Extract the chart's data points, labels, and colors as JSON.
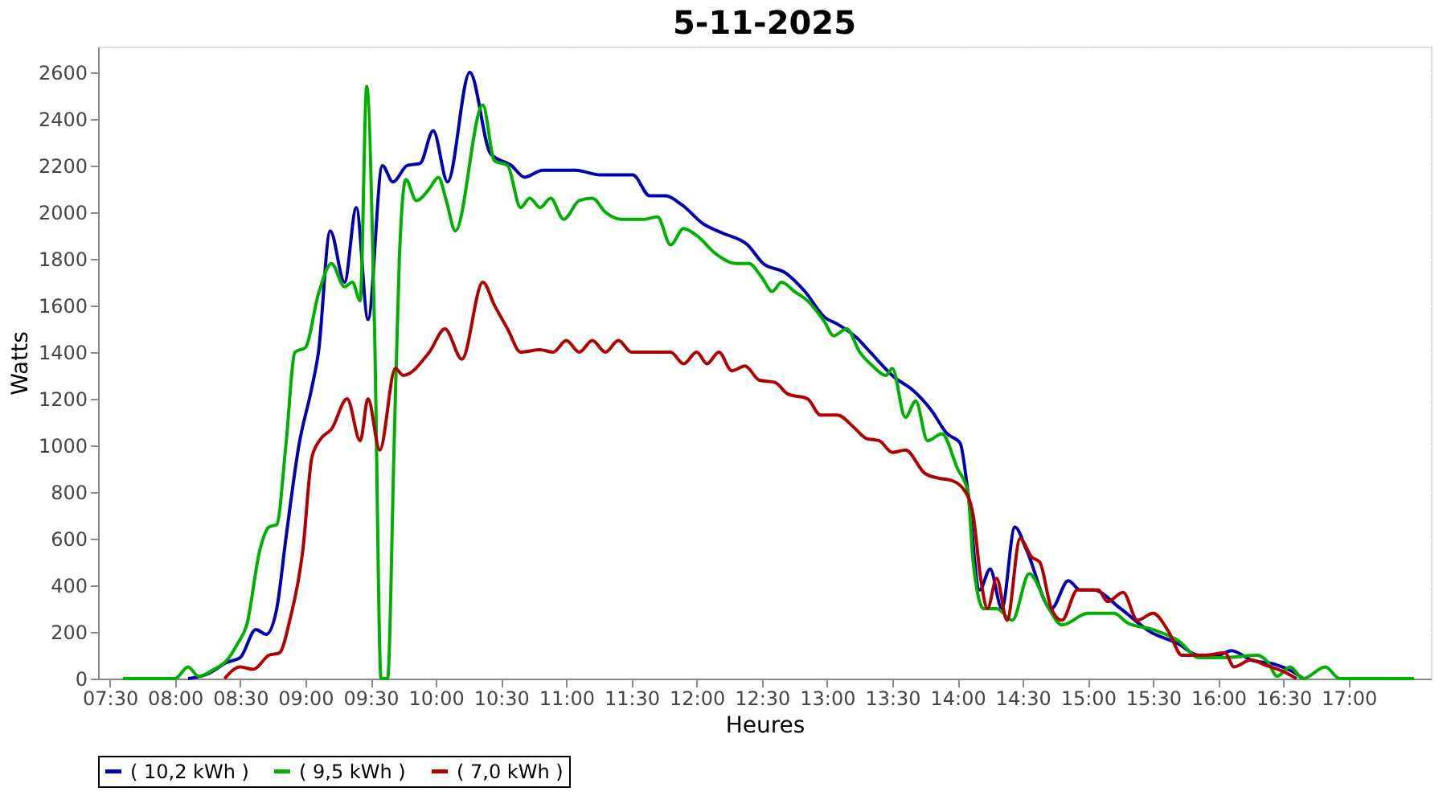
{
  "chart_data": {
    "type": "line",
    "title": "5-11-2025",
    "xlabel": "Heures",
    "ylabel": "Watts",
    "xlim": [
      7.41,
      17.63
    ],
    "ylim": [
      0,
      2710
    ],
    "xticks": [
      {
        "value": 7.5,
        "label": "07:30"
      },
      {
        "value": 8,
        "label": "08:00"
      },
      {
        "value": 8.5,
        "label": "08:30"
      },
      {
        "value": 9,
        "label": "09:00"
      },
      {
        "value": 9.5,
        "label": "09:30"
      },
      {
        "value": 10,
        "label": "10:00"
      },
      {
        "value": 10.5,
        "label": "10:30"
      },
      {
        "value": 11,
        "label": "11:00"
      },
      {
        "value": 11.5,
        "label": "11:30"
      },
      {
        "value": 12,
        "label": "12:00"
      },
      {
        "value": 12.5,
        "label": "12:30"
      },
      {
        "value": 13,
        "label": "13:00"
      },
      {
        "value": 13.5,
        "label": "13:30"
      },
      {
        "value": 14,
        "label": "14:00"
      },
      {
        "value": 14.5,
        "label": "14:30"
      },
      {
        "value": 15,
        "label": "15:00"
      },
      {
        "value": 15.5,
        "label": "15:30"
      },
      {
        "value": 16,
        "label": "16:00"
      },
      {
        "value": 16.5,
        "label": "16:30"
      },
      {
        "value": 17,
        "label": "17:00"
      }
    ],
    "yticks": [
      0,
      200,
      400,
      600,
      800,
      1000,
      1200,
      1400,
      1600,
      1800,
      2000,
      2200,
      2400,
      2600
    ],
    "grid": true,
    "legend": "bottom",
    "marker": "none",
    "line_style": "solid",
    "series": [
      {
        "name": "( 10,2 kWh )",
        "color": "#0000b0",
        "x": [
          8.1,
          8.25,
          8.4,
          8.5,
          8.62,
          8.7,
          8.78,
          8.85,
          8.95,
          9.05,
          9.1,
          9.19,
          9.3,
          9.39,
          9.48,
          9.59,
          9.67,
          9.78,
          9.88,
          9.98,
          10.09,
          10.26,
          10.42,
          10.58,
          10.68,
          10.82,
          11.07,
          11.26,
          11.51,
          11.64,
          11.76,
          11.89,
          12.05,
          12.2,
          12.39,
          12.51,
          12.68,
          12.83,
          12.98,
          13.08,
          13.23,
          13.33,
          13.52,
          13.65,
          13.8,
          13.92,
          14.02,
          14.08,
          14.17,
          14.25,
          14.34,
          14.44,
          14.53,
          14.72,
          14.85,
          14.94,
          15.04,
          15.25,
          15.48,
          15.69,
          15.85,
          16.0,
          16.1,
          16.25,
          16.44,
          16.6,
          16.65
        ],
        "values": [
          0,
          20,
          70,
          90,
          210,
          190,
          300,
          600,
          1000,
          1250,
          1400,
          1920,
          1700,
          2020,
          1540,
          2200,
          2130,
          2200,
          2210,
          2350,
          2130,
          2600,
          2250,
          2200,
          2150,
          2180,
          2180,
          2160,
          2160,
          2070,
          2070,
          2030,
          1950,
          1910,
          1860,
          1780,
          1740,
          1660,
          1550,
          1520,
          1460,
          1400,
          1290,
          1240,
          1150,
          1050,
          1010,
          800,
          380,
          470,
          300,
          650,
          550,
          300,
          420,
          380,
          380,
          300,
          200,
          150,
          100,
          100,
          120,
          80,
          60,
          20,
          0
        ]
      },
      {
        "name": "( 9,5 kWh )",
        "color": "#00b000",
        "x": [
          7.6,
          8.0,
          8.1,
          8.18,
          8.3,
          8.4,
          8.48,
          8.55,
          8.65,
          8.72,
          8.78,
          8.85,
          8.92,
          9.0,
          9.1,
          9.2,
          9.3,
          9.36,
          9.42,
          9.47,
          9.53,
          9.58,
          9.63,
          9.68,
          9.72,
          9.77,
          9.85,
          9.95,
          10.02,
          10.08,
          10.15,
          10.36,
          10.45,
          10.55,
          10.65,
          10.72,
          10.8,
          10.88,
          10.98,
          11.1,
          11.2,
          11.3,
          11.42,
          11.6,
          11.7,
          11.8,
          11.9,
          12.0,
          12.15,
          12.3,
          12.4,
          12.5,
          12.58,
          12.65,
          12.75,
          12.85,
          12.98,
          13.05,
          13.15,
          13.25,
          13.35,
          13.45,
          13.5,
          13.6,
          13.68,
          13.77,
          13.88,
          14.0,
          14.08,
          14.12,
          14.2,
          14.3,
          14.42,
          14.55,
          14.7,
          14.8,
          15.0,
          15.2,
          15.3,
          15.5,
          15.7,
          15.85,
          16.05,
          16.3,
          16.38,
          16.45,
          16.55,
          16.65,
          16.82,
          16.93,
          17.5
        ],
        "values": [
          0,
          0,
          50,
          10,
          40,
          80,
          150,
          230,
          550,
          650,
          660,
          1000,
          1400,
          1420,
          1650,
          1780,
          1680,
          1700,
          1620,
          2540,
          1500,
          0,
          0,
          1000,
          1800,
          2140,
          2050,
          2100,
          2150,
          2050,
          1920,
          2460,
          2220,
          2200,
          2020,
          2060,
          2020,
          2060,
          1970,
          2050,
          2060,
          2000,
          1970,
          1970,
          1980,
          1860,
          1930,
          1900,
          1820,
          1780,
          1780,
          1720,
          1660,
          1700,
          1660,
          1620,
          1530,
          1470,
          1500,
          1400,
          1340,
          1300,
          1330,
          1120,
          1190,
          1020,
          1050,
          900,
          800,
          500,
          300,
          300,
          250,
          450,
          300,
          230,
          280,
          280,
          240,
          210,
          160,
          90,
          90,
          100,
          70,
          10,
          50,
          0,
          50,
          0,
          0
        ]
      },
      {
        "name": "( 7,0 kWh )",
        "color": "#b00000",
        "x": [
          8.38,
          8.5,
          8.6,
          8.72,
          8.8,
          8.88,
          8.98,
          9.05,
          9.12,
          9.2,
          9.32,
          9.42,
          9.48,
          9.57,
          9.69,
          9.75,
          9.95,
          10.07,
          10.2,
          10.36,
          10.45,
          10.55,
          10.65,
          10.8,
          10.9,
          11.0,
          11.1,
          11.2,
          11.3,
          11.4,
          11.5,
          11.8,
          11.9,
          12.0,
          12.08,
          12.17,
          12.27,
          12.37,
          12.48,
          12.6,
          12.7,
          12.85,
          12.95,
          13.08,
          13.2,
          13.3,
          13.4,
          13.5,
          13.6,
          13.75,
          13.85,
          13.95,
          14.05,
          14.12,
          14.18,
          14.23,
          14.3,
          14.38,
          14.48,
          14.57,
          14.63,
          14.72,
          14.8,
          14.92,
          15.08,
          15.15,
          15.27,
          15.38,
          15.5,
          15.62,
          15.72,
          15.9,
          16.05,
          16.12,
          16.25,
          16.35,
          16.5,
          16.6
        ],
        "values": [
          0,
          50,
          40,
          100,
          110,
          250,
          550,
          950,
          1030,
          1070,
          1200,
          1020,
          1200,
          980,
          1330,
          1300,
          1400,
          1500,
          1370,
          1700,
          1600,
          1500,
          1400,
          1410,
          1400,
          1450,
          1400,
          1450,
          1400,
          1450,
          1400,
          1400,
          1350,
          1400,
          1350,
          1400,
          1320,
          1340,
          1280,
          1270,
          1220,
          1200,
          1130,
          1130,
          1080,
          1030,
          1020,
          970,
          980,
          880,
          860,
          850,
          810,
          700,
          420,
          300,
          430,
          250,
          600,
          520,
          500,
          300,
          250,
          380,
          380,
          330,
          370,
          250,
          280,
          200,
          100,
          100,
          110,
          50,
          80,
          60,
          30,
          0
        ]
      }
    ]
  }
}
